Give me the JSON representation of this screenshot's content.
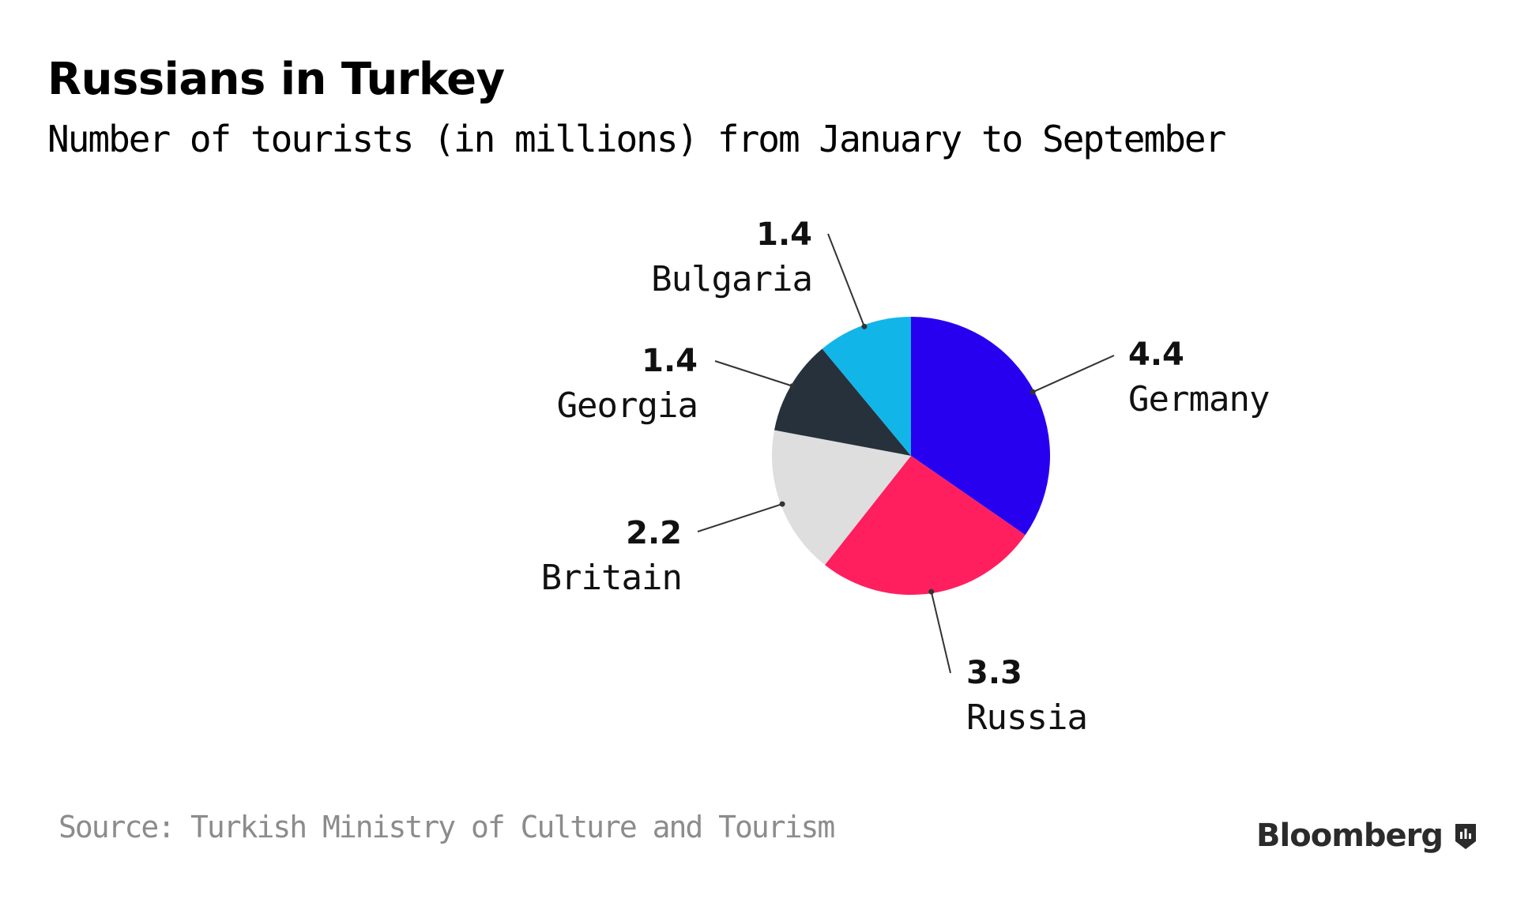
{
  "title": "Russians in Turkey",
  "subtitle": "Number of tourists (in millions) from January to September",
  "source": "Source: Turkish Ministry of Culture and Tourism",
  "brand": "Bloomberg",
  "chart_data": {
    "type": "pie",
    "slices": [
      {
        "label": "Germany",
        "value": 4.4,
        "value_text": "4.4",
        "color": "#2800f0"
      },
      {
        "label": "Russia",
        "value": 3.3,
        "value_text": "3.3",
        "color": "#ff1f5f"
      },
      {
        "label": "Britain",
        "value": 2.2,
        "value_text": "2.2",
        "color": "#dedede"
      },
      {
        "label": "Georgia",
        "value": 1.4,
        "value_text": "1.4",
        "color": "#27313b"
      },
      {
        "label": "Bulgaria",
        "value": 1.4,
        "value_text": "1.4",
        "color": "#12b5e8"
      }
    ],
    "start_angle": "12 o'clock",
    "direction": "clockwise"
  }
}
